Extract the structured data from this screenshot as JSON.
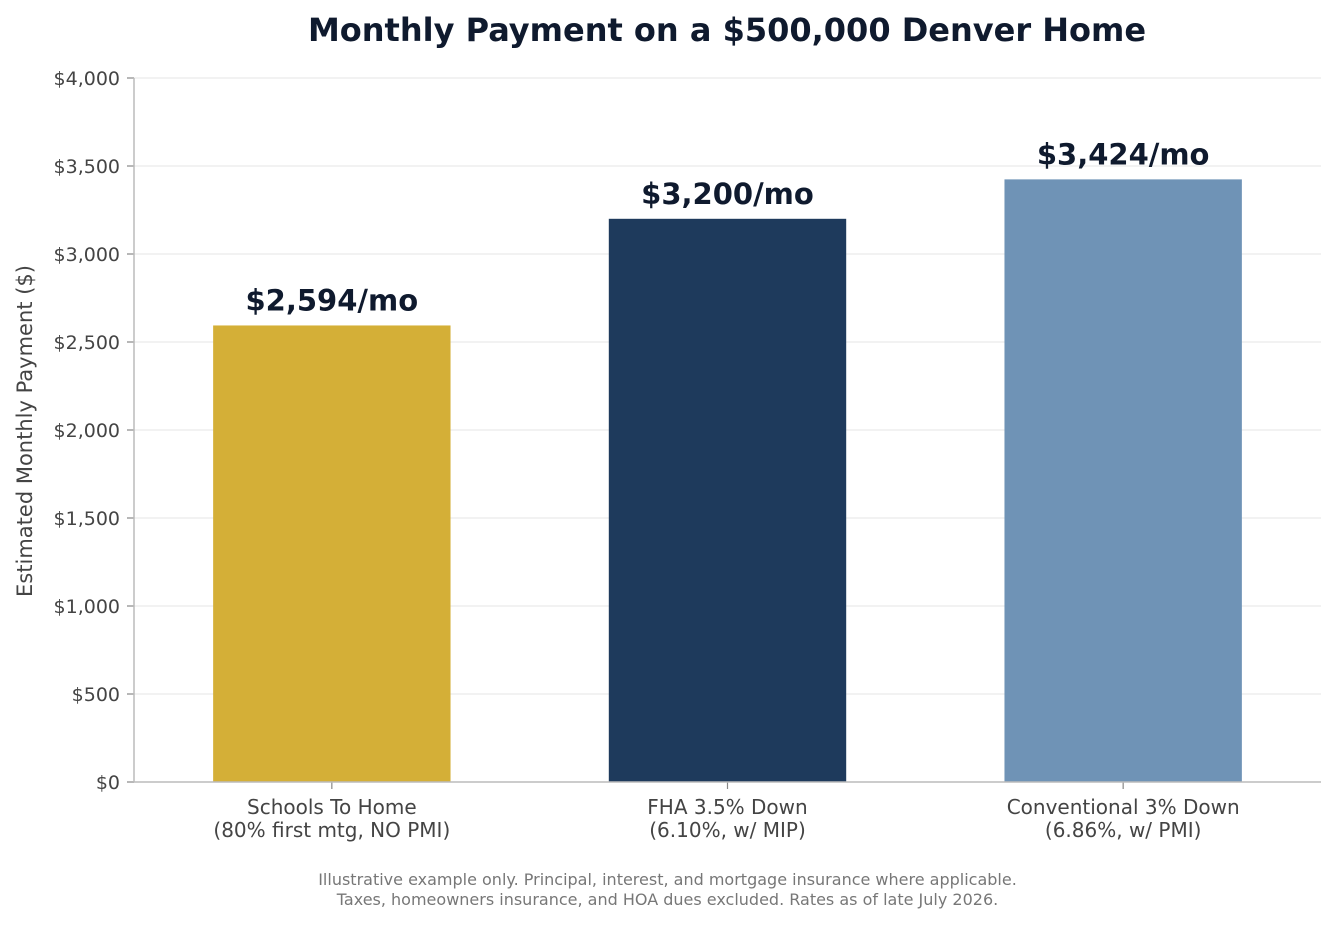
{
  "chart_data": {
    "type": "bar",
    "title": "Monthly Payment on a $500,000 Denver Home",
    "xlabel": "",
    "ylabel": "Estimated Monthly Payment ($)",
    "ylim": [
      0,
      4000
    ],
    "yticks": [
      0,
      500,
      1000,
      1500,
      2000,
      2500,
      3000,
      3500,
      4000
    ],
    "ytick_labels": [
      "$0",
      "$500",
      "$1,000",
      "$1,500",
      "$2,000",
      "$2,500",
      "$3,000",
      "$3,500",
      "$4,000"
    ],
    "grid": "horizontal",
    "categories": [
      [
        "Schools To Home",
        "(80% first mtg, NO PMI)"
      ],
      [
        "FHA 3.5% Down",
        "(6.10%, w/ MIP)"
      ],
      [
        "Conventional 3% Down",
        "(6.86%, w/ PMI)"
      ]
    ],
    "values": [
      2594,
      3200,
      3424
    ],
    "value_labels": [
      "$2,594/mo",
      "$3,200/mo",
      "$3,424/mo"
    ],
    "colors": [
      "#D4AF37",
      "#1E3A5C",
      "#6F93B6"
    ]
  },
  "footnote": {
    "line1": "Illustrative example only. Principal, interest, and mortgage insurance where applicable.",
    "line2": "Taxes, homeowners insurance, and HOA dues excluded. Rates as of late July 2026."
  }
}
